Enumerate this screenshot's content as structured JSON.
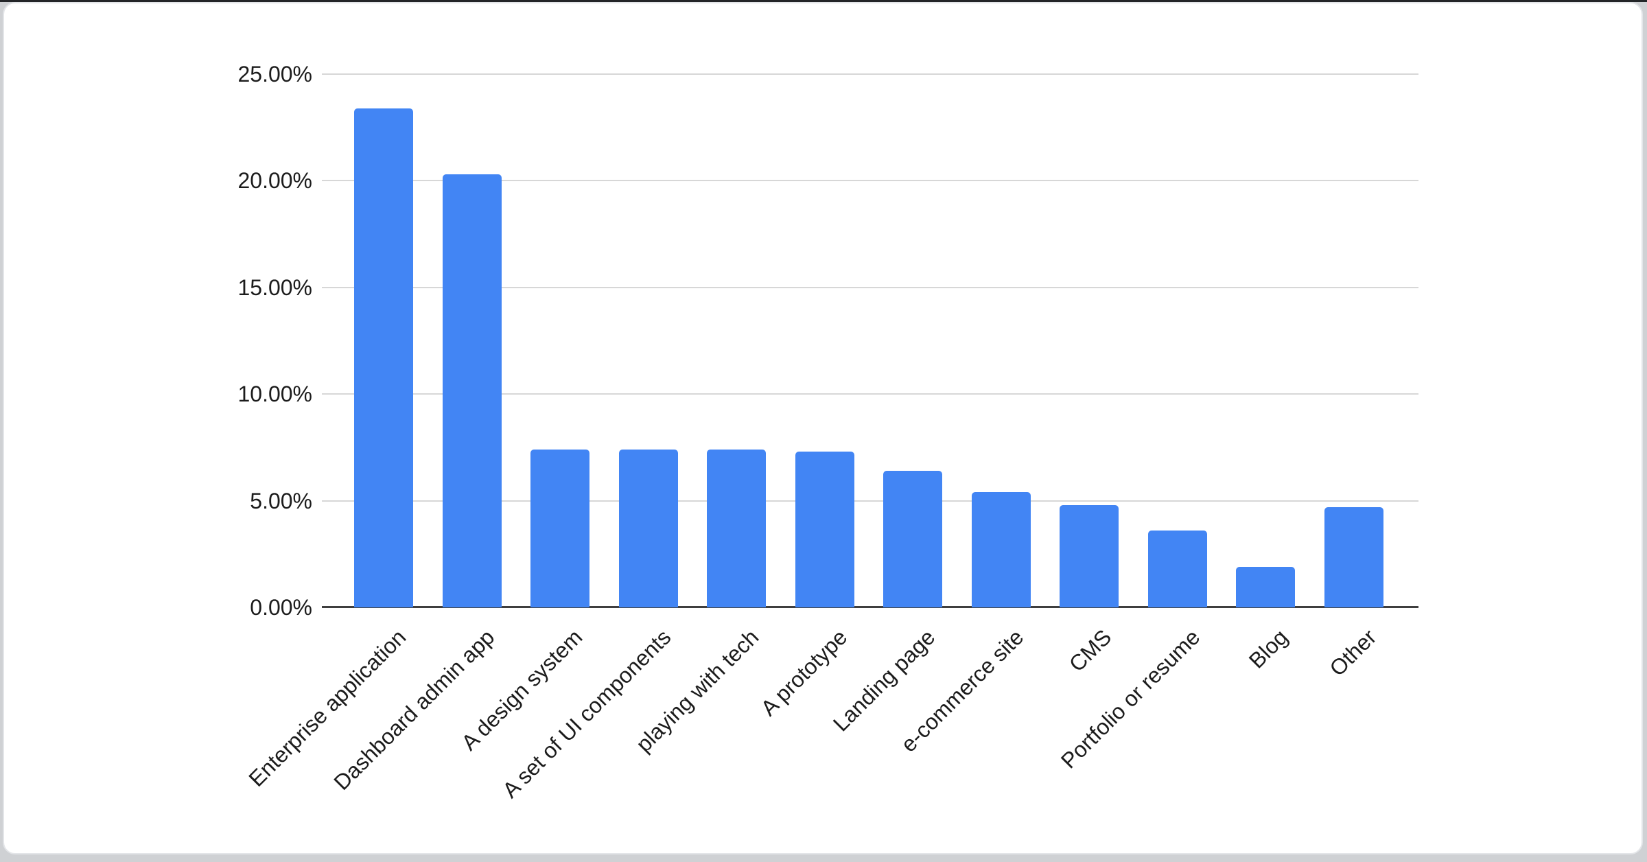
{
  "page": {
    "background": "#cfd1d4",
    "top_edge_color": "#232528",
    "card_background": "#ffffff",
    "card_border_color": "#e3e5e8"
  },
  "chart_data": {
    "type": "bar",
    "title": "",
    "xlabel": "",
    "ylabel": "",
    "categories": [
      "Enterprise application",
      "Dashboard admin app",
      "A design system",
      "A set of UI components",
      "playing with tech",
      "A prototype",
      "Landing page",
      "e-commerce site",
      "CMS",
      "Portfolio or resume",
      "Blog",
      "Other"
    ],
    "values": [
      23.4,
      20.3,
      7.4,
      7.4,
      7.4,
      7.3,
      6.4,
      5.4,
      4.8,
      3.6,
      1.9,
      4.7
    ],
    "value_unit": "%",
    "ylim": [
      0,
      25
    ],
    "y_tick_values": [
      25,
      20,
      15,
      10,
      5,
      0
    ],
    "y_tick_labels": [
      "25.00%",
      "20.00%",
      "15.00%",
      "10.00%",
      "5.00%",
      "0.00%"
    ],
    "x_label_rotation_deg": -45,
    "grid": true,
    "legend_position": "none",
    "bar_color": "#4285f4",
    "gridline_color": "#d7d7d7",
    "axis_line_color": "#3f3f3f",
    "label_color": "#1c1c1c"
  }
}
